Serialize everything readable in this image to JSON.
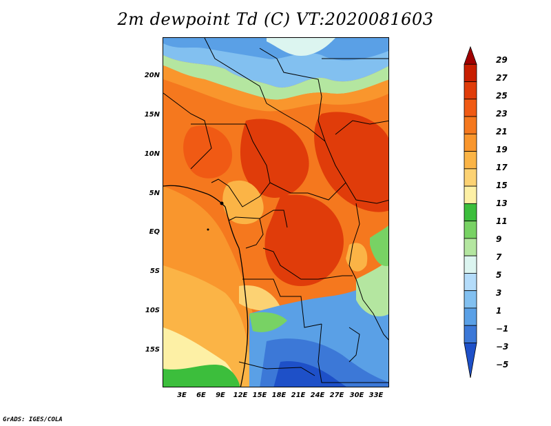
{
  "title": "2m dewpoint Td (C) VT:2020081603",
  "credit": "GrADS: IGES/COLA",
  "map": {
    "lat_labels": [
      "20N",
      "15N",
      "10N",
      "5N",
      "EQ",
      "5S",
      "10S",
      "15S"
    ],
    "lon_labels": [
      "3E",
      "6E",
      "9E",
      "12E",
      "15E",
      "18E",
      "21E",
      "24E",
      "27E",
      "30E",
      "33E"
    ]
  },
  "colorbar": {
    "labels": [
      "29",
      "27",
      "25",
      "23",
      "21",
      "19",
      "17",
      "15",
      "13",
      "11",
      "9",
      "7",
      "5",
      "3",
      "1",
      "−1",
      "−3",
      "−5"
    ],
    "colors": [
      "#a00000",
      "#c81e00",
      "#e03c0a",
      "#f05a14",
      "#f5781e",
      "#f9962d",
      "#fbb446",
      "#fcd273",
      "#fdf0a5",
      "#3cbe3c",
      "#78d264",
      "#b4e6a0",
      "#dcf5f0",
      "#b4dcfa",
      "#82c0f0",
      "#5aa0e6",
      "#3c78d7",
      "#1e50c8"
    ]
  }
}
